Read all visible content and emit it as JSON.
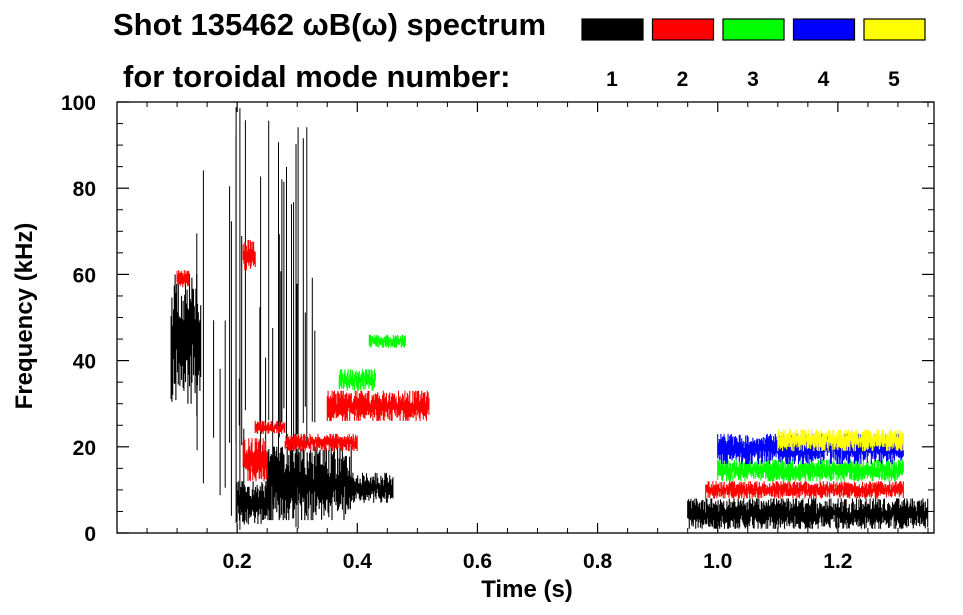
{
  "chart_data": {
    "type": "spectrogram",
    "title": "Shot 135462 ωB(ω) spectrum",
    "subtitle": "for toroidal mode number:",
    "xlabel": "Time (s)",
    "ylabel": "Frequency (kHz)",
    "xlim": [
      0.0,
      1.36
    ],
    "ylim": [
      0,
      100
    ],
    "x_ticks": [
      0.2,
      0.4,
      0.6,
      0.8,
      1.0,
      1.2
    ],
    "x_tick_labels": [
      "0.2",
      "0.4",
      "0.6",
      "0.8",
      "1.0",
      "1.2"
    ],
    "y_ticks": [
      0,
      20,
      40,
      60,
      80,
      100
    ],
    "y_tick_labels": [
      "0",
      "20",
      "40",
      "60",
      "80",
      "100"
    ],
    "legend_placement": "top-right",
    "legend": [
      {
        "label": "1",
        "color": "#000000"
      },
      {
        "label": "2",
        "color": "#ff0000"
      },
      {
        "label": "3",
        "color": "#00ff00"
      },
      {
        "label": "4",
        "color": "#0000ff"
      },
      {
        "label": "5",
        "color": "#ffff00"
      }
    ],
    "series": [
      {
        "mode": "1",
        "color": "#000000",
        "bands": [
          {
            "t": [
              0.09,
              0.14
            ],
            "f": [
              30,
              60
            ]
          },
          {
            "t": [
              0.12,
              0.33
            ],
            "f": [
              0,
              100
            ],
            "sparse": true
          },
          {
            "t": [
              0.2,
              0.25
            ],
            "f": [
              2,
              12
            ]
          },
          {
            "t": [
              0.25,
              0.39
            ],
            "f": [
              3,
              20
            ]
          },
          {
            "t": [
              0.39,
              0.46
            ],
            "f": [
              7,
              14
            ]
          },
          {
            "t": [
              0.95,
              1.35
            ],
            "f": [
              1,
              8
            ]
          }
        ]
      },
      {
        "mode": "2",
        "color": "#ff0000",
        "bands": [
          {
            "t": [
              0.1,
              0.12
            ],
            "f": [
              57,
              61
            ]
          },
          {
            "t": [
              0.21,
              0.23
            ],
            "f": [
              61,
              68
            ]
          },
          {
            "t": [
              0.21,
              0.25
            ],
            "f": [
              12,
              22
            ]
          },
          {
            "t": [
              0.23,
              0.28
            ],
            "f": [
              23,
              26
            ]
          },
          {
            "t": [
              0.28,
              0.4
            ],
            "f": [
              19,
              23
            ]
          },
          {
            "t": [
              0.35,
              0.52
            ],
            "f": [
              26,
              33
            ]
          },
          {
            "t": [
              0.98,
              1.31
            ],
            "f": [
              8,
              12
            ]
          }
        ]
      },
      {
        "mode": "3",
        "color": "#00ff00",
        "bands": [
          {
            "t": [
              0.37,
              0.43
            ],
            "f": [
              33,
              38
            ]
          },
          {
            "t": [
              0.42,
              0.48
            ],
            "f": [
              43,
              46
            ]
          },
          {
            "t": [
              1.0,
              1.31
            ],
            "f": [
              12,
              17
            ]
          }
        ]
      },
      {
        "mode": "4",
        "color": "#0000ff",
        "bands": [
          {
            "t": [
              1.0,
              1.31
            ],
            "f": [
              16,
              23
            ]
          }
        ]
      },
      {
        "mode": "5",
        "color": "#ffff00",
        "bands": [
          {
            "t": [
              1.1,
              1.31
            ],
            "f": [
              19,
              24
            ]
          }
        ]
      }
    ]
  }
}
